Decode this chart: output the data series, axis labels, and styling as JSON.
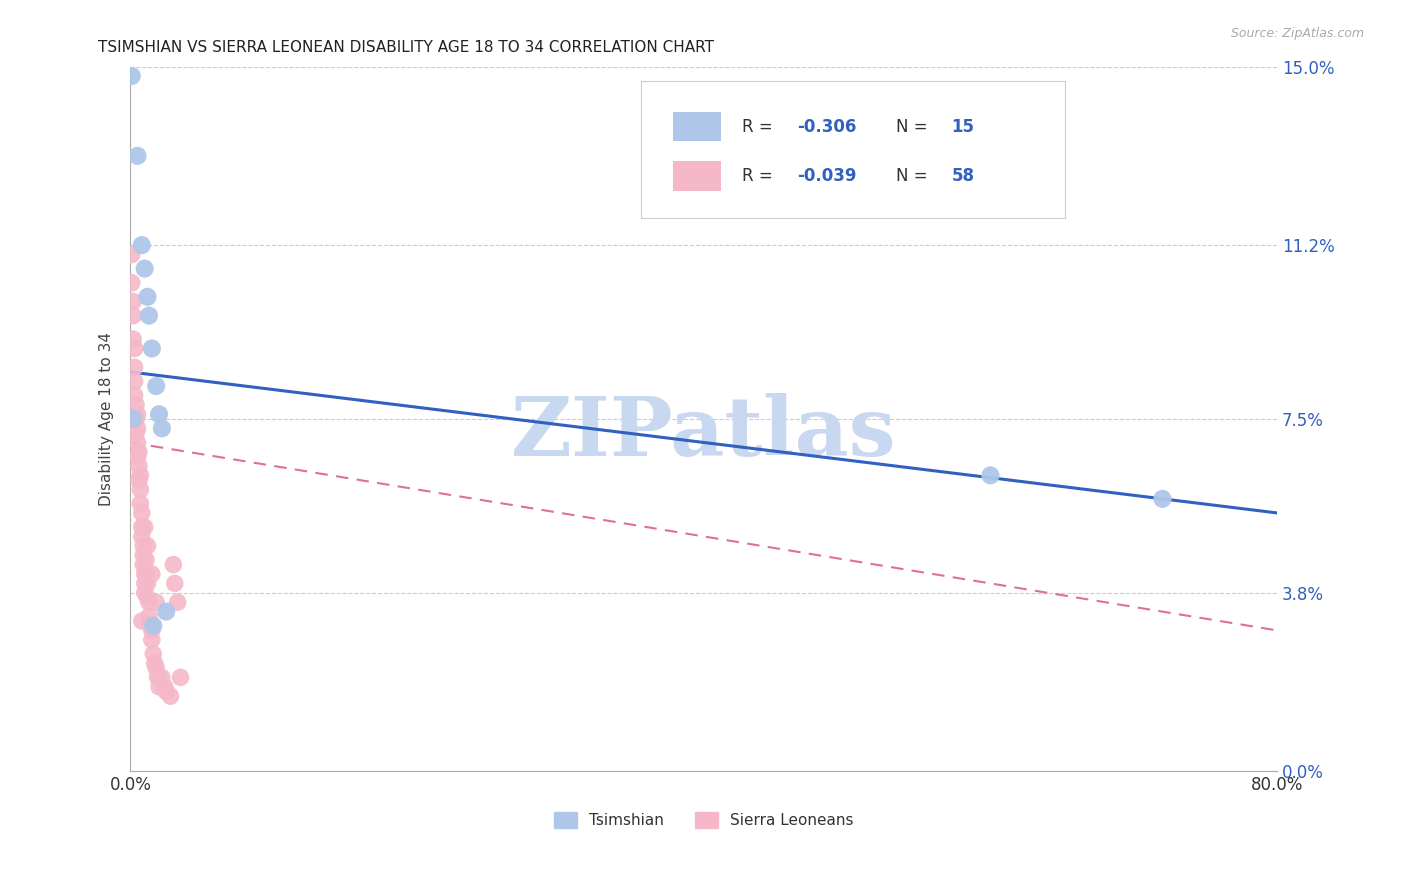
{
  "title": "TSIMSHIAN VS SIERRA LEONEAN DISABILITY AGE 18 TO 34 CORRELATION CHART",
  "source": "Source: ZipAtlas.com",
  "ylabel": "Disability Age 18 to 34",
  "xlim": [
    0.0,
    0.8
  ],
  "ylim": [
    0.0,
    0.15
  ],
  "yticks": [
    0.0,
    0.038,
    0.075,
    0.112,
    0.15
  ],
  "ytick_labels": [
    "0.0%",
    "3.8%",
    "7.5%",
    "11.2%",
    "15.0%"
  ],
  "tsimshian_color": "#aec6e8",
  "sierra_color": "#f4b8c8",
  "tsimshian_line_color": "#3060c0",
  "sierra_line_color": "#e07090",
  "watermark": "ZIPatlas",
  "watermark_color": "#c8d8f0",
  "legend_text_color": "#3060c0",
  "bg_color": "#ffffff",
  "grid_color": "#cccccc",
  "tsimshian_x": [
    0.001,
    0.005,
    0.008,
    0.01,
    0.012,
    0.013,
    0.015,
    0.018,
    0.02,
    0.022,
    0.6,
    0.72,
    0.002,
    0.025,
    0.016
  ],
  "tsimshian_y": [
    0.148,
    0.131,
    0.112,
    0.107,
    0.101,
    0.097,
    0.09,
    0.082,
    0.076,
    0.073,
    0.063,
    0.058,
    0.075,
    0.034,
    0.031
  ],
  "sierra_x": [
    0.001,
    0.001,
    0.002,
    0.002,
    0.002,
    0.003,
    0.003,
    0.003,
    0.003,
    0.004,
    0.004,
    0.004,
    0.005,
    0.005,
    0.005,
    0.005,
    0.006,
    0.006,
    0.006,
    0.007,
    0.007,
    0.007,
    0.008,
    0.008,
    0.008,
    0.009,
    0.009,
    0.009,
    0.01,
    0.01,
    0.01,
    0.011,
    0.011,
    0.012,
    0.012,
    0.013,
    0.013,
    0.014,
    0.015,
    0.015,
    0.016,
    0.017,
    0.018,
    0.019,
    0.02,
    0.022,
    0.024,
    0.025,
    0.028,
    0.03,
    0.031,
    0.033,
    0.035,
    0.008,
    0.01,
    0.012,
    0.015,
    0.018
  ],
  "sierra_y": [
    0.11,
    0.104,
    0.1,
    0.097,
    0.092,
    0.09,
    0.086,
    0.083,
    0.08,
    0.078,
    0.075,
    0.072,
    0.076,
    0.073,
    0.07,
    0.067,
    0.068,
    0.065,
    0.062,
    0.063,
    0.06,
    0.057,
    0.055,
    0.052,
    0.05,
    0.048,
    0.046,
    0.044,
    0.042,
    0.04,
    0.038,
    0.045,
    0.042,
    0.04,
    0.037,
    0.036,
    0.033,
    0.031,
    0.03,
    0.028,
    0.025,
    0.023,
    0.022,
    0.02,
    0.018,
    0.02,
    0.018,
    0.017,
    0.016,
    0.044,
    0.04,
    0.036,
    0.02,
    0.032,
    0.052,
    0.048,
    0.042,
    0.036
  ]
}
